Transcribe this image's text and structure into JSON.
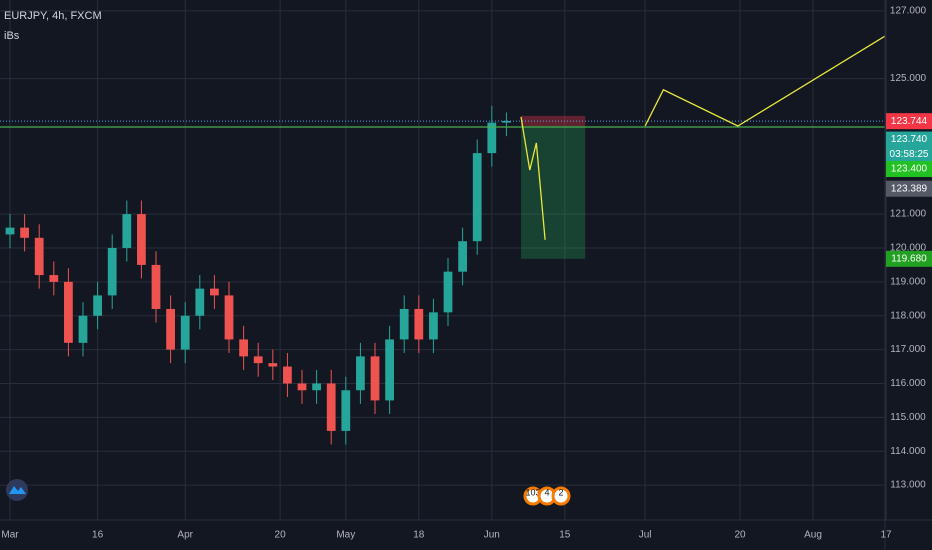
{
  "chart_data": {
    "type": "candlestick",
    "title": "EURJPY, 4h, FXCM",
    "subtitle": "iBs",
    "x": [
      0,
      2,
      4,
      6,
      8,
      10,
      12,
      14,
      16,
      18,
      20,
      22,
      24,
      26,
      28,
      30,
      32,
      34,
      36,
      38,
      40,
      42,
      44,
      46,
      48,
      50,
      52,
      54,
      56,
      58,
      60,
      62,
      64,
      66,
      68
    ],
    "open": [
      120.4,
      120.6,
      120.3,
      119.2,
      119.0,
      117.2,
      118.0,
      118.6,
      120.0,
      121.0,
      119.5,
      118.2,
      117.0,
      118.0,
      118.8,
      118.6,
      117.3,
      116.8,
      116.6,
      116.5,
      116.0,
      115.8,
      116.0,
      114.6,
      115.8,
      116.8,
      115.5,
      117.3,
      118.2,
      117.3,
      118.1,
      119.3,
      120.2,
      122.8,
      123.7
    ],
    "high": [
      121.0,
      121.0,
      120.7,
      119.6,
      119.4,
      118.4,
      119.0,
      120.4,
      121.4,
      121.4,
      119.9,
      118.6,
      118.4,
      119.2,
      119.2,
      119.0,
      117.7,
      117.2,
      117.0,
      116.9,
      116.4,
      116.4,
      116.4,
      116.2,
      117.2,
      117.2,
      117.7,
      118.6,
      118.6,
      118.5,
      119.7,
      120.6,
      123.2,
      124.2,
      124.0
    ],
    "low": [
      120.0,
      119.9,
      118.8,
      118.6,
      116.8,
      116.8,
      117.6,
      118.2,
      119.6,
      119.1,
      117.8,
      116.6,
      116.6,
      117.6,
      118.2,
      116.9,
      116.4,
      116.2,
      116.1,
      115.6,
      115.4,
      115.4,
      114.2,
      114.2,
      115.4,
      115.1,
      115.1,
      116.9,
      116.9,
      116.9,
      117.7,
      118.9,
      119.8,
      122.4,
      123.3
    ],
    "close": [
      120.6,
      120.3,
      119.2,
      119.0,
      117.2,
      118.0,
      118.6,
      120.0,
      121.0,
      119.5,
      118.2,
      117.0,
      118.0,
      118.8,
      118.6,
      117.3,
      116.8,
      116.6,
      116.5,
      116.0,
      115.8,
      116.0,
      114.6,
      115.8,
      116.8,
      115.5,
      117.3,
      118.2,
      117.3,
      118.1,
      119.3,
      120.2,
      122.8,
      123.7,
      123.75
    ],
    "up_color": "#26a69a",
    "down_color": "#ef5350",
    "xlim": [
      -1.37,
      119.86
    ],
    "ylim": [
      111.97,
      127.32
    ],
    "xticks": [
      {
        "value": 0,
        "label": "Mar"
      },
      {
        "value": 12,
        "label": "16"
      },
      {
        "value": 24,
        "label": "Apr"
      },
      {
        "value": 37,
        "label": "20"
      },
      {
        "value": 46,
        "label": "May"
      },
      {
        "value": 56,
        "label": "18"
      },
      {
        "value": 66,
        "label": "Jun"
      },
      {
        "value": 76,
        "label": "15"
      },
      {
        "value": 87,
        "label": "Jul"
      },
      {
        "value": 100,
        "label": "20"
      },
      {
        "value": 110,
        "label": "Aug"
      },
      {
        "value": 120,
        "label": "17"
      }
    ],
    "yticks": [
      {
        "value": 127,
        "label": "127.000"
      },
      {
        "value": 125,
        "label": "125.000"
      },
      {
        "value": 121,
        "label": "121.000"
      },
      {
        "value": 120,
        "label": "120.000"
      },
      {
        "value": 119,
        "label": "119.000"
      },
      {
        "value": 118,
        "label": "118.000"
      },
      {
        "value": 117,
        "label": "117.000"
      },
      {
        "value": 116,
        "label": "116.000"
      },
      {
        "value": 115,
        "label": "115.000"
      },
      {
        "value": 114,
        "label": "114.000"
      },
      {
        "value": 113,
        "label": "113.000"
      }
    ],
    "grid": true,
    "hlines": [
      {
        "value": 123.744,
        "color": "#5b9cf6",
        "style": "dotted"
      },
      {
        "value": 123.57,
        "color": "#4caf50",
        "style": "solid"
      }
    ],
    "position": {
      "x": [
        70,
        78.8
      ],
      "stop": 123.9,
      "entry": 123.6,
      "target": 119.68
    },
    "projections": [
      {
        "color": "#e8e83a",
        "x": [
          70,
          71.2,
          72.1,
          73.3
        ],
        "y": [
          123.87,
          122.3,
          123.1,
          120.24
        ]
      },
      {
        "color": "#e8e83a",
        "x": [
          87,
          89.5,
          99.7,
          119.9
        ],
        "y": [
          123.6,
          124.67,
          123.6,
          126.26
        ]
      }
    ],
    "price_labels": [
      {
        "value": 123.744,
        "label": "123.744",
        "color": "#f23645"
      },
      {
        "value": 123.2,
        "label": "123.740",
        "color": "#26a69a"
      },
      {
        "value": 122.77,
        "label": "03:58:25",
        "color": "#26a69a"
      },
      {
        "value": 122.33,
        "label": "123.400",
        "color": "#22c122"
      },
      {
        "value": 121.75,
        "label": "123.389",
        "color": "#555b66"
      },
      {
        "value": 119.68,
        "label": "119.680",
        "color": "#22a022"
      }
    ],
    "events": [
      "103",
      "4",
      "2"
    ]
  }
}
